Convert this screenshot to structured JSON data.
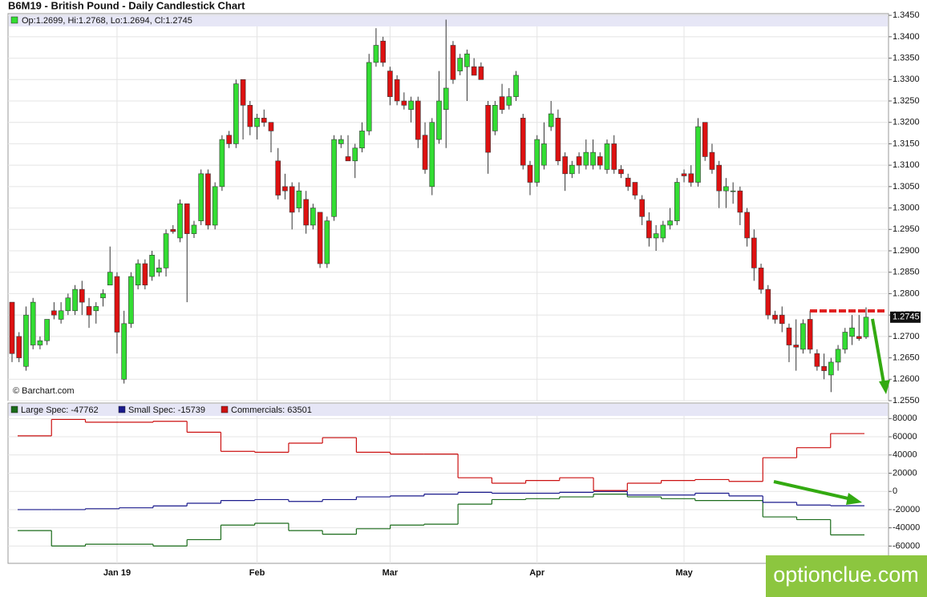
{
  "chart_data": [
    {
      "type": "candlestick",
      "title": "B6M19 - British Pound - Daily Candlestick Chart",
      "ohlc_label": "Op:1.2699, Hi:1.2768, Lo:1.2694, Cl:1.2745",
      "source": "© Barchart.com",
      "last_label": "1.2745",
      "up_color": "#33dd33",
      "down_color": "#dd1111",
      "grid": true,
      "categories": [
        null,
        null,
        null,
        null,
        null,
        null,
        null,
        null,
        null,
        null,
        null,
        null,
        null,
        null,
        null,
        "Jan 19",
        null,
        null,
        null,
        null,
        null,
        null,
        null,
        null,
        null,
        null,
        null,
        null,
        null,
        null,
        null,
        null,
        null,
        null,
        null,
        "Feb",
        null,
        null,
        null,
        null,
        null,
        null,
        null,
        null,
        null,
        null,
        null,
        null,
        null,
        null,
        null,
        null,
        null,
        null,
        "Mar",
        null,
        null,
        null,
        null,
        null,
        null,
        null,
        null,
        null,
        null,
        null,
        null,
        null,
        null,
        null,
        null,
        null,
        null,
        null,
        null,
        "Apr",
        null,
        null,
        null,
        null,
        null,
        null,
        null,
        null,
        null,
        null,
        null,
        null,
        null,
        null,
        null,
        null,
        null,
        null,
        null,
        null,
        "May",
        null,
        null,
        null,
        null,
        null,
        null,
        null,
        null,
        null,
        null,
        null,
        null,
        null,
        null,
        null,
        null,
        null,
        null,
        null,
        null,
        null,
        null,
        null,
        null,
        null,
        null
      ],
      "open": [
        1.278,
        1.27,
        1.263,
        1.268,
        1.268,
        1.269,
        1.276,
        1.274,
        1.276,
        1.276,
        1.281,
        1.277,
        1.276,
        1.279,
        1.282,
        1.284,
        1.26,
        1.273,
        1.282,
        1.287,
        1.284,
        1.285,
        1.286,
        1.295,
        1.293,
        1.301,
        1.294,
        1.297,
        1.308,
        1.296,
        1.305,
        1.317,
        1.315,
        1.33,
        1.324,
        1.319,
        1.321,
        1.32,
        1.311,
        1.305,
        1.305,
        1.3,
        1.302,
        1.296,
        1.299,
        1.287,
        1.298,
        1.315,
        1.312,
        1.311,
        1.314,
        1.318,
        1.334,
        1.339,
        1.332,
        1.33,
        1.325,
        1.323,
        1.325,
        1.317,
        1.305,
        1.316,
        1.323,
        1.338,
        1.332,
        1.333,
        1.333,
        1.333,
        1.324,
        1.318,
        1.326,
        1.324,
        1.326,
        1.321,
        1.31,
        1.306,
        1.31,
        1.319,
        1.321,
        1.312,
        1.308,
        1.312,
        1.31,
        1.31,
        1.312,
        1.309,
        1.315,
        1.309,
        1.307,
        1.306,
        1.302,
        1.297,
        1.293,
        1.293,
        1.296,
        1.297,
        1.308,
        1.308,
        1.306,
        1.32,
        1.313,
        1.31,
        1.304,
        1.304,
        1.304,
        1.299,
        1.293,
        1.286,
        1.281,
        1.275,
        1.275,
        1.272,
        1.268,
        1.267,
        1.274,
        1.266,
        1.263,
        1.261,
        1.264,
        1.267,
        1.27,
        1.27,
        1.2699
      ],
      "high": [
        1.278,
        1.271,
        1.277,
        1.279,
        1.27,
        1.274,
        1.278,
        1.278,
        1.28,
        1.282,
        1.283,
        1.279,
        1.278,
        1.281,
        1.291,
        1.285,
        1.276,
        1.285,
        1.288,
        1.288,
        1.29,
        1.288,
        1.295,
        1.296,
        1.302,
        1.301,
        1.297,
        1.309,
        1.309,
        1.306,
        1.317,
        1.318,
        1.33,
        1.33,
        1.325,
        1.322,
        1.323,
        1.32,
        1.314,
        1.308,
        1.306,
        1.306,
        1.304,
        1.301,
        1.299,
        1.298,
        1.317,
        1.317,
        1.317,
        1.315,
        1.32,
        1.336,
        1.342,
        1.34,
        1.333,
        1.331,
        1.327,
        1.326,
        1.326,
        1.32,
        1.321,
        1.332,
        1.344,
        1.339,
        1.336,
        1.337,
        1.335,
        1.334,
        1.325,
        1.325,
        1.329,
        1.328,
        1.332,
        1.322,
        1.311,
        1.317,
        1.32,
        1.325,
        1.323,
        1.313,
        1.311,
        1.313,
        1.316,
        1.316,
        1.313,
        1.316,
        1.317,
        1.31,
        1.308,
        1.306,
        1.303,
        1.299,
        1.296,
        1.297,
        1.3,
        1.307,
        1.309,
        1.31,
        1.321,
        1.32,
        1.315,
        1.311,
        1.307,
        1.306,
        1.305,
        1.3,
        1.295,
        1.287,
        1.282,
        1.276,
        1.277,
        1.273,
        1.274,
        1.274,
        1.276,
        1.267,
        1.266,
        1.265,
        1.268,
        1.272,
        1.275,
        1.275,
        1.2768
      ],
      "low": [
        1.264,
        1.264,
        1.262,
        1.267,
        1.267,
        1.268,
        1.274,
        1.273,
        1.275,
        1.275,
        1.275,
        1.272,
        1.273,
        1.277,
        1.282,
        1.266,
        1.259,
        1.272,
        1.281,
        1.281,
        1.283,
        1.284,
        1.284,
        1.294,
        1.292,
        1.278,
        1.293,
        1.296,
        1.295,
        1.295,
        1.304,
        1.314,
        1.314,
        1.316,
        1.317,
        1.316,
        1.319,
        1.313,
        1.302,
        1.302,
        1.295,
        1.299,
        1.294,
        1.295,
        1.286,
        1.286,
        1.297,
        1.314,
        1.311,
        1.307,
        1.313,
        1.317,
        1.333,
        1.333,
        1.324,
        1.324,
        1.323,
        1.32,
        1.314,
        1.308,
        1.303,
        1.315,
        1.314,
        1.329,
        1.331,
        1.325,
        1.331,
        1.33,
        1.308,
        1.317,
        1.322,
        1.323,
        1.325,
        1.309,
        1.303,
        1.305,
        1.309,
        1.318,
        1.31,
        1.304,
        1.307,
        1.308,
        1.309,
        1.309,
        1.309,
        1.308,
        1.308,
        1.307,
        1.304,
        1.302,
        1.296,
        1.291,
        1.29,
        1.292,
        1.295,
        1.296,
        1.306,
        1.305,
        1.305,
        1.311,
        1.308,
        1.3,
        1.3,
        1.301,
        1.296,
        1.291,
        1.283,
        1.28,
        1.274,
        1.273,
        1.271,
        1.264,
        1.262,
        1.266,
        1.266,
        1.262,
        1.26,
        1.257,
        1.262,
        1.266,
        1.268,
        1.269,
        1.2694
      ],
      "close": [
        1.266,
        1.265,
        1.275,
        1.278,
        1.269,
        1.274,
        1.275,
        1.276,
        1.279,
        1.281,
        1.278,
        1.275,
        1.277,
        1.28,
        1.285,
        1.271,
        1.273,
        1.284,
        1.287,
        1.282,
        1.289,
        1.286,
        1.294,
        1.2945,
        1.301,
        1.294,
        1.296,
        1.308,
        1.296,
        1.305,
        1.316,
        1.315,
        1.329,
        1.324,
        1.319,
        1.321,
        1.32,
        1.318,
        1.303,
        1.304,
        1.299,
        1.304,
        1.296,
        1.3,
        1.287,
        1.297,
        1.316,
        1.316,
        1.311,
        1.314,
        1.318,
        1.334,
        1.338,
        1.334,
        1.326,
        1.325,
        1.324,
        1.325,
        1.316,
        1.309,
        1.32,
        1.325,
        1.328,
        1.33,
        1.335,
        1.336,
        1.331,
        1.33,
        1.313,
        1.324,
        1.323,
        1.326,
        1.331,
        1.31,
        1.306,
        1.316,
        1.315,
        1.322,
        1.311,
        1.308,
        1.31,
        1.31,
        1.313,
        1.313,
        1.31,
        1.315,
        1.309,
        1.308,
        1.305,
        1.303,
        1.298,
        1.293,
        1.294,
        1.296,
        1.297,
        1.306,
        1.3075,
        1.306,
        1.319,
        1.312,
        1.309,
        1.304,
        1.305,
        1.304,
        1.299,
        1.293,
        1.286,
        1.281,
        1.275,
        1.274,
        1.273,
        1.268,
        1.2675,
        1.273,
        1.267,
        1.263,
        1.262,
        1.264,
        1.267,
        1.271,
        1.272,
        1.2695,
        1.2745
      ],
      "ylim": [
        1.255,
        1.3454
      ],
      "yticks": [
        {
          "value": 1.255,
          "label": "1.2550"
        },
        {
          "value": 1.26,
          "label": "1.2600"
        },
        {
          "value": 1.265,
          "label": "1.2650"
        },
        {
          "value": 1.27,
          "label": "1.2700"
        },
        {
          "value": 1.275,
          "label": "1.2750"
        },
        {
          "value": 1.28,
          "label": "1.2800"
        },
        {
          "value": 1.285,
          "label": "1.2850"
        },
        {
          "value": 1.29,
          "label": "1.2900"
        },
        {
          "value": 1.295,
          "label": "1.2950"
        },
        {
          "value": 1.3,
          "label": "1.3000"
        },
        {
          "value": 1.305,
          "label": "1.3050"
        },
        {
          "value": 1.31,
          "label": "1.3100"
        },
        {
          "value": 1.315,
          "label": "1.3150"
        },
        {
          "value": 1.32,
          "label": "1.3200"
        },
        {
          "value": 1.325,
          "label": "1.3250"
        },
        {
          "value": 1.33,
          "label": "1.3300"
        },
        {
          "value": 1.335,
          "label": "1.3350"
        },
        {
          "value": 1.34,
          "label": "1.3400"
        },
        {
          "value": 1.345,
          "label": "1.3450"
        }
      ]
    },
    {
      "type": "step",
      "grid": true,
      "series": [
        {
          "name": "Large Spec: -47762",
          "color": "#1a6b1a",
          "values": [
            -43000,
            -60000,
            -58000,
            -58000,
            -60000,
            -53000,
            -37000,
            -35000,
            -43000,
            -47000,
            -41000,
            -37000,
            -36000,
            -14000,
            -9000,
            -8000,
            -6000,
            -3000,
            -6000,
            -8000,
            -10000,
            -10000,
            -28000,
            -31000,
            -47762
          ]
        },
        {
          "name": "Small Spec: -15739",
          "color": "#1a1a8c",
          "values": [
            -20000,
            -20000,
            -19000,
            -18000,
            -16000,
            -13000,
            -10000,
            -9000,
            -11000,
            -9000,
            -6000,
            -5000,
            -3000,
            -1000,
            -2000,
            -2000,
            -1000,
            0,
            -4000,
            -4000,
            -2000,
            -5000,
            -12000,
            -15000,
            -15739
          ]
        },
        {
          "name": "Commercials: 63501",
          "color": "#cc1111",
          "values": [
            61000,
            79000,
            76000,
            76000,
            77000,
            65000,
            44000,
            43000,
            53000,
            59000,
            43000,
            41000,
            41000,
            15000,
            9000,
            12000,
            15000,
            1000,
            9000,
            12000,
            13000,
            11000,
            37000,
            48000,
            63501
          ]
        }
      ],
      "ylim": [
        -79000,
        97000
      ],
      "yticks": [
        80000,
        60000,
        40000,
        20000,
        0,
        -20000,
        -40000,
        -60000
      ]
    }
  ],
  "watermark": "optionclue.com"
}
